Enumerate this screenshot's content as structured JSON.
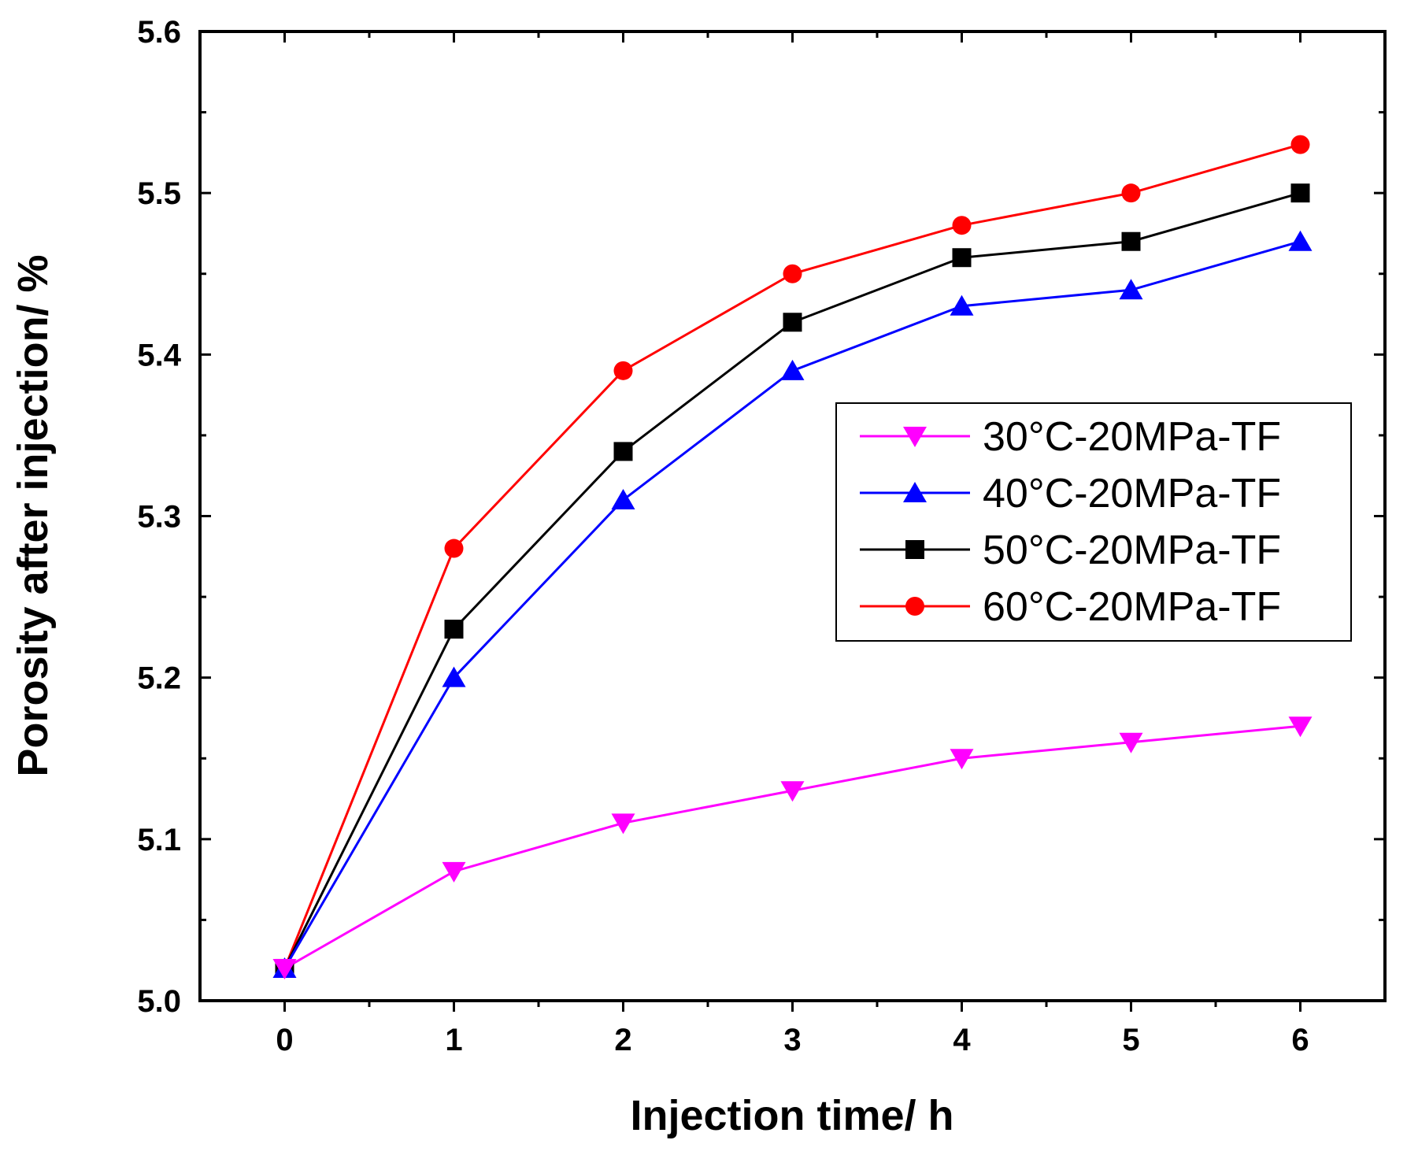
{
  "chart_data": {
    "type": "line",
    "title": "",
    "xlabel": "Injection time/ h",
    "ylabel": "Porosity after injection/ %",
    "x": [
      0,
      1,
      2,
      3,
      4,
      5,
      6
    ],
    "xlim": [
      -0.5,
      6.5
    ],
    "ylim": [
      5.0,
      5.6
    ],
    "x_ticks": [
      "0",
      "1",
      "2",
      "3",
      "4",
      "5",
      "6"
    ],
    "y_ticks": [
      "5.0",
      "5.1",
      "5.2",
      "5.3",
      "5.4",
      "5.5",
      "5.6"
    ],
    "grid": false,
    "legend_position": "center-right",
    "series": [
      {
        "name": "30°C-20MPa-TF",
        "color": "#ff00ff",
        "marker": "triangle-down",
        "values": [
          5.02,
          5.08,
          5.11,
          5.13,
          5.15,
          5.16,
          5.17
        ]
      },
      {
        "name": "40°C-20MPa-TF",
        "color": "#0000ff",
        "marker": "triangle-up",
        "values": [
          5.02,
          5.2,
          5.31,
          5.39,
          5.43,
          5.44,
          5.47
        ]
      },
      {
        "name": "50°C-20MPa-TF",
        "color": "#000000",
        "marker": "square",
        "values": [
          5.02,
          5.23,
          5.34,
          5.42,
          5.46,
          5.47,
          5.5
        ]
      },
      {
        "name": "60°C-20MPa-TF",
        "color": "#ff0000",
        "marker": "circle",
        "values": [
          5.02,
          5.28,
          5.39,
          5.45,
          5.48,
          5.5,
          5.53
        ]
      }
    ]
  }
}
